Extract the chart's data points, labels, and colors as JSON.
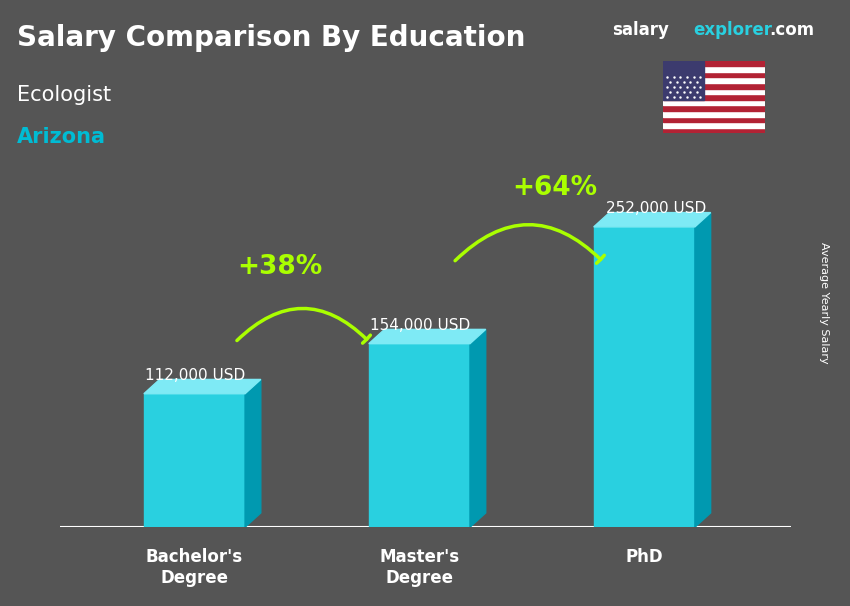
{
  "title": "Salary Comparison By Education",
  "subtitle": "Ecologist",
  "location": "Arizona",
  "categories": [
    "Bachelor's\nDegree",
    "Master's\nDegree",
    "PhD"
  ],
  "values": [
    112000,
    154000,
    252000
  ],
  "value_labels": [
    "112,000 USD",
    "154,000 USD",
    "252,000 USD"
  ],
  "bar_color": "#00bcd4",
  "bar_color_top": "#80deea",
  "bar_color_side": "#0097a7",
  "pct_labels": [
    "+38%",
    "+64%"
  ],
  "pct_color": "#aaff00",
  "background_color": "#555555",
  "title_color": "#ffffff",
  "subtitle_color": "#ffffff",
  "location_color": "#00bcd4",
  "value_label_color": "#ffffff",
  "ylabel_text": "Average Yearly Salary",
  "brand_salary": "salary",
  "brand_explorer": "explorer",
  "brand_com": ".com",
  "ylim": [
    0,
    300000
  ]
}
